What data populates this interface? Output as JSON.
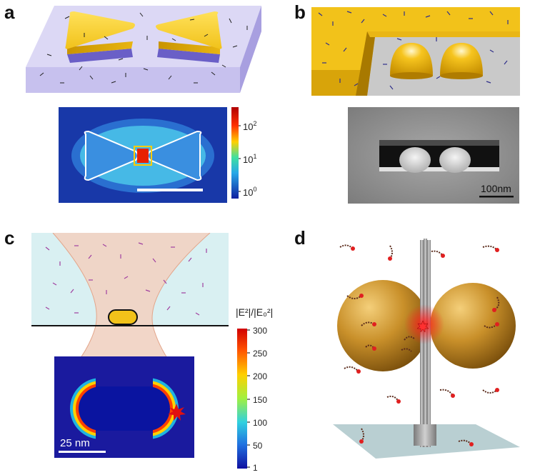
{
  "panels": {
    "a": {
      "letter": "a",
      "colorbar_ticks": [
        "10",
        "10",
        "10"
      ],
      "colorbar_exps": [
        "2",
        "1",
        "0"
      ]
    },
    "b": {
      "letter": "b",
      "scalebar_label": "100nm"
    },
    "c": {
      "letter": "c",
      "colorbar_title": "|E²|/|E₀²|",
      "colorbar_ticks": [
        "300",
        "250",
        "200",
        "150",
        "100",
        "50",
        "1"
      ],
      "scalebar_label": "25 nm"
    },
    "d": {
      "letter": "d"
    }
  },
  "colors": {
    "gold": "#f2c21a",
    "gold_dark": "#b58a00",
    "substrate": "#d9d6f2",
    "arrow": "#222222",
    "field_bg": "#1f2f9e",
    "sphere": "#b07a1e",
    "pillar": "#9a9a9a",
    "hot": "#ff3030"
  },
  "icons": {
    "dipole": "double-arrow-icon",
    "emitter": "star-icon",
    "dna": "dna-strand-icon"
  }
}
